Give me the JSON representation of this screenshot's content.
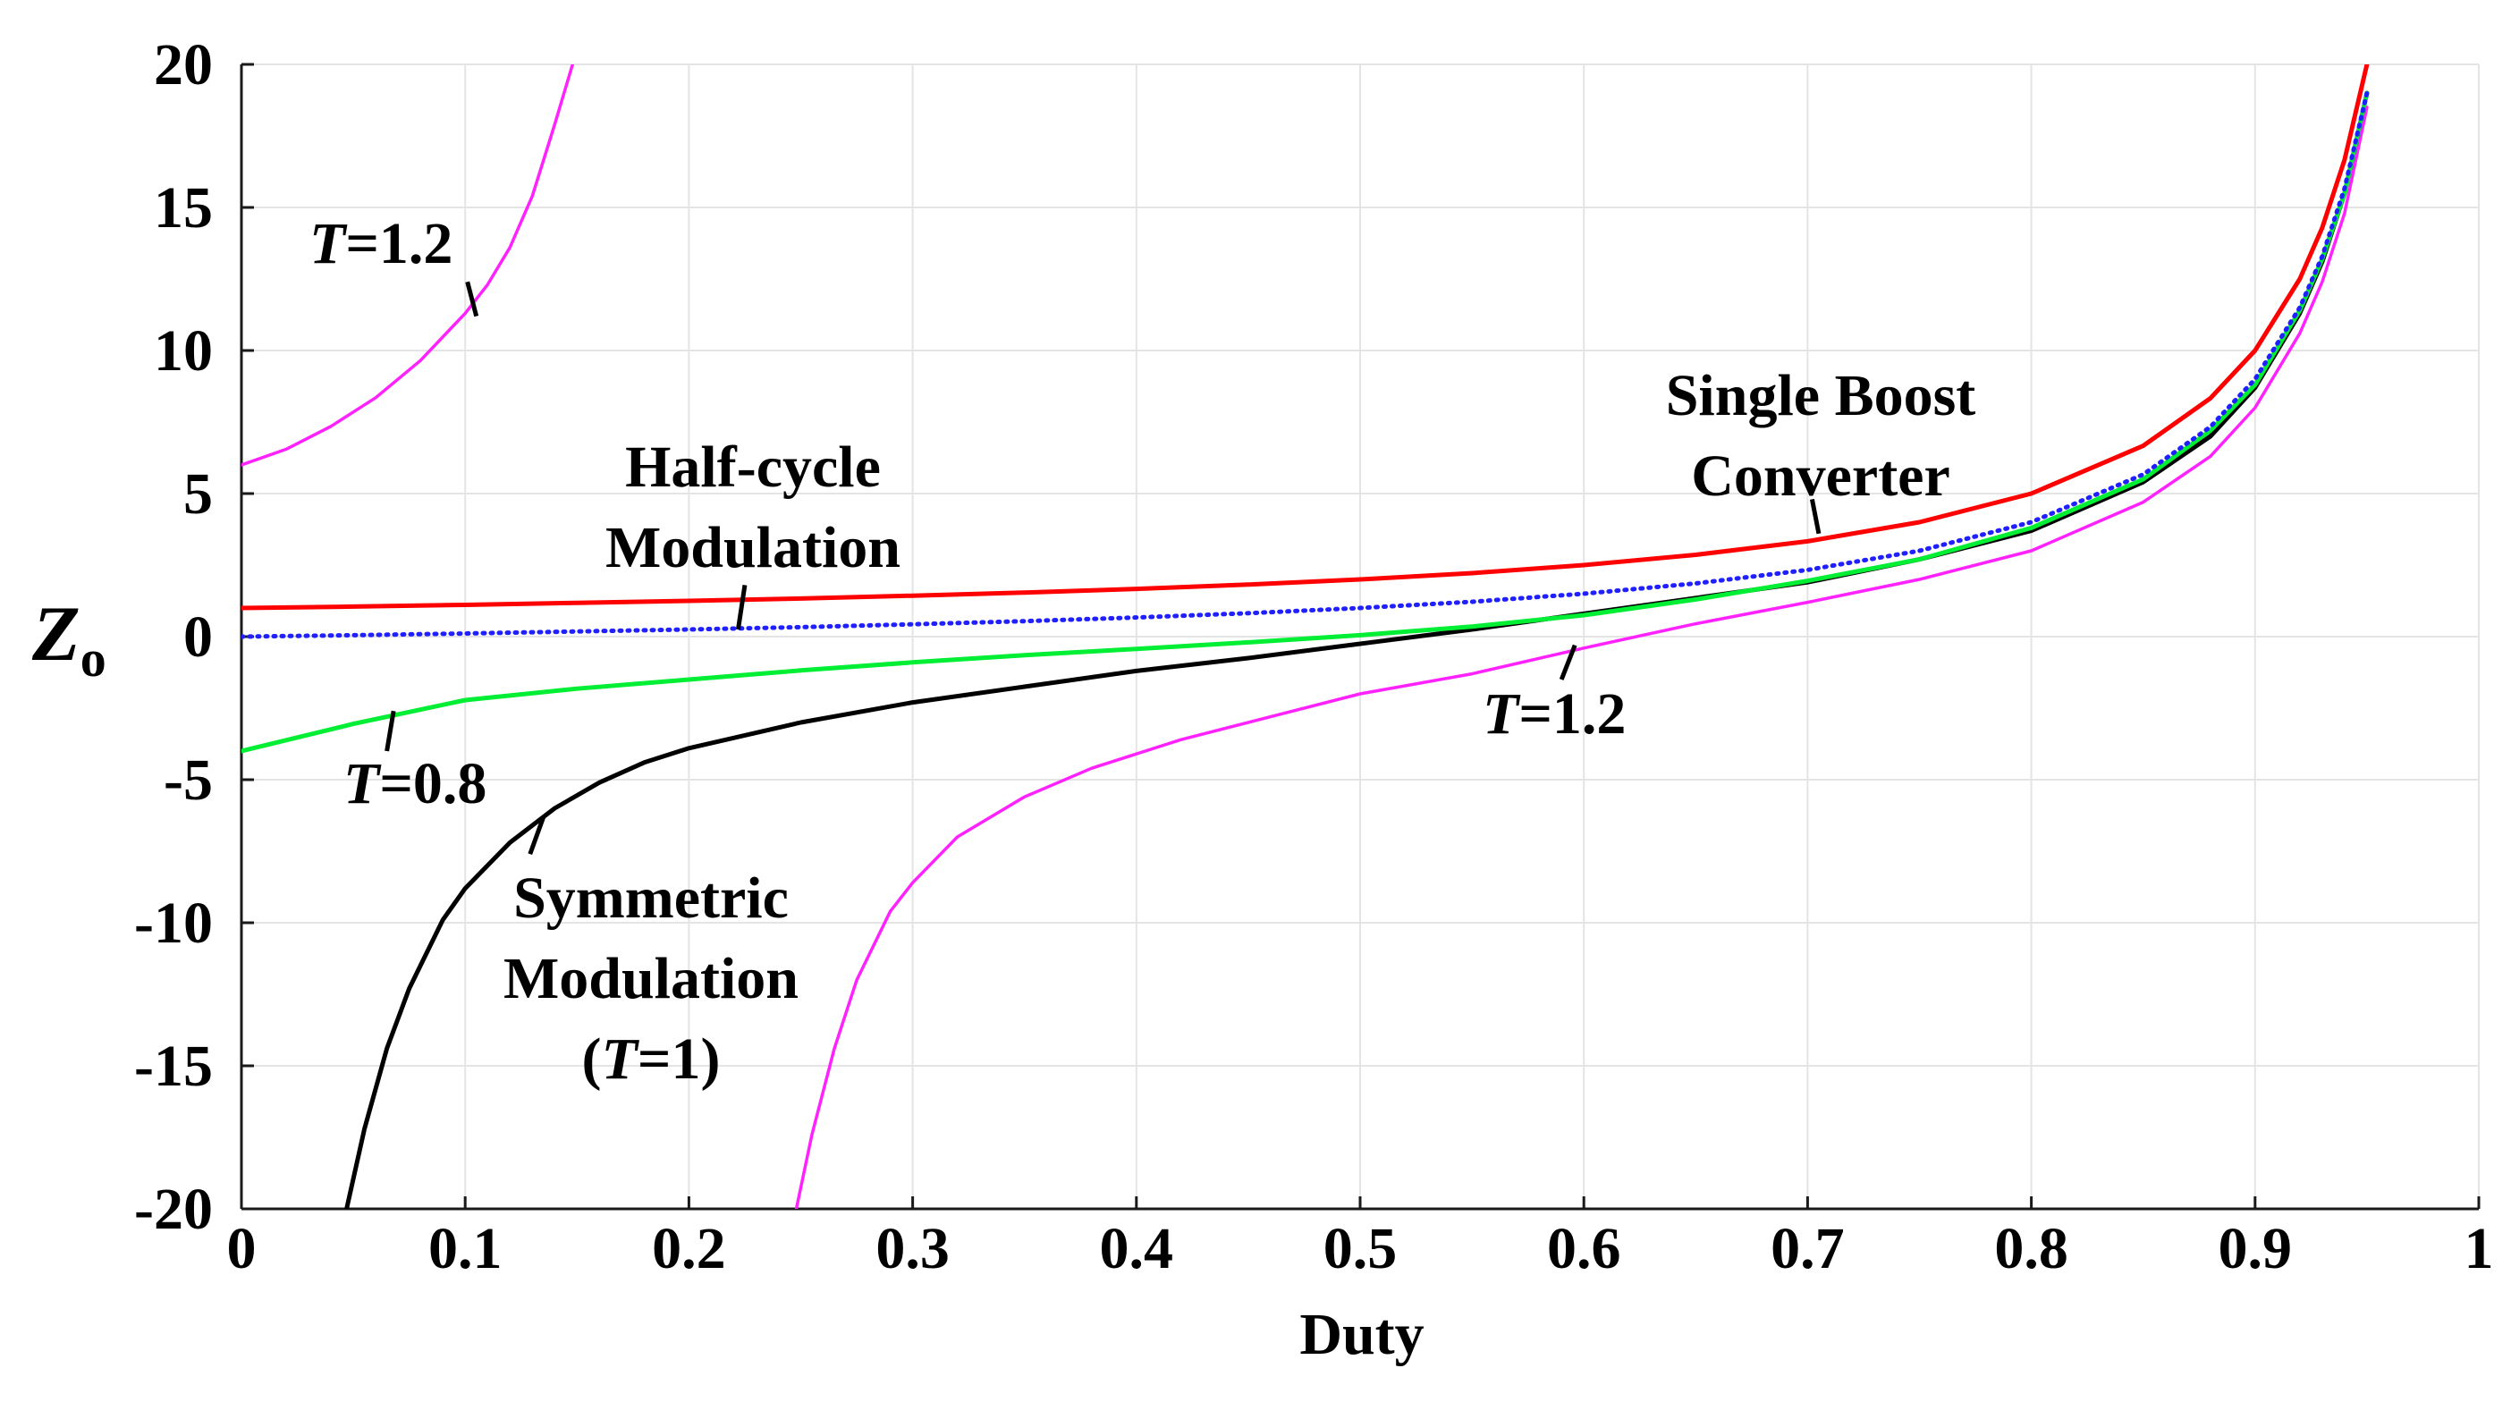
{
  "chart_data": {
    "type": "line",
    "title": "",
    "xlabel": "Duty",
    "ylabel": "Z",
    "ylabel_subscript": "o",
    "xlim": [
      0,
      1
    ],
    "ylim": [
      -20,
      20
    ],
    "x_ticks": [
      0,
      0.1,
      0.2,
      0.3,
      0.4,
      0.5,
      0.6,
      0.7,
      0.8,
      0.9,
      1
    ],
    "x_tick_labels": [
      "0",
      "0.1",
      "0.2",
      "0.3",
      "0.4",
      "0.5",
      "0.6",
      "0.7",
      "0.8",
      "0.9",
      "1"
    ],
    "y_ticks": [
      20,
      15,
      10,
      5,
      0,
      -5,
      -10,
      -15,
      -20
    ],
    "y_tick_labels": [
      "20",
      "15",
      "10",
      "5",
      "0",
      "-5",
      "-10",
      "-15",
      "-20"
    ],
    "grid": true,
    "series": [
      {
        "name": "Single Boost Converter",
        "color": "#ff0000",
        "style": "solid",
        "x": [
          0,
          0.05,
          0.1,
          0.15,
          0.2,
          0.25,
          0.3,
          0.35,
          0.4,
          0.45,
          0.5,
          0.55,
          0.6,
          0.65,
          0.7,
          0.75,
          0.8,
          0.85,
          0.88,
          0.9,
          0.92,
          0.93,
          0.94,
          0.95
        ],
        "y": [
          1,
          1.05,
          1.11,
          1.18,
          1.25,
          1.33,
          1.43,
          1.54,
          1.67,
          1.82,
          2,
          2.22,
          2.5,
          2.86,
          3.33,
          4,
          5,
          6.67,
          8.33,
          10,
          12.5,
          14.29,
          16.67,
          20
        ]
      },
      {
        "name": "Half-cycle Modulation",
        "color": "#1f1fff",
        "style": "dotted",
        "x": [
          0,
          0.05,
          0.1,
          0.15,
          0.2,
          0.25,
          0.3,
          0.35,
          0.4,
          0.45,
          0.5,
          0.55,
          0.6,
          0.65,
          0.7,
          0.75,
          0.8,
          0.85,
          0.88,
          0.9,
          0.92,
          0.93,
          0.94,
          0.95
        ],
        "y": [
          0,
          0.05,
          0.11,
          0.18,
          0.25,
          0.33,
          0.43,
          0.54,
          0.67,
          0.82,
          1,
          1.22,
          1.5,
          1.86,
          2.33,
          3,
          4,
          5.67,
          7.33,
          9,
          11.5,
          13.29,
          15.67,
          19
        ]
      },
      {
        "name": "T=0.8",
        "color": "#00ee33",
        "style": "solid",
        "x": [
          0,
          0.05,
          0.1,
          0.15,
          0.2,
          0.25,
          0.3,
          0.35,
          0.4,
          0.45,
          0.5,
          0.55,
          0.6,
          0.65,
          0.7,
          0.75,
          0.8,
          0.85,
          0.88,
          0.9,
          0.92,
          0.93,
          0.94,
          0.95
        ],
        "y": [
          -4,
          -3.05,
          -2.22,
          -1.82,
          -1.5,
          -1.18,
          -0.9,
          -0.65,
          -0.43,
          -0.2,
          0.05,
          0.35,
          0.75,
          1.3,
          1.95,
          2.7,
          3.8,
          5.5,
          7.2,
          8.8,
          11.4,
          13.2,
          15.5,
          19
        ]
      },
      {
        "name": "Symmetric Modulation (T=1)",
        "color": "#000000",
        "style": "solid",
        "x": [
          0.047,
          0.055,
          0.065,
          0.075,
          0.09,
          0.1,
          0.12,
          0.14,
          0.16,
          0.18,
          0.2,
          0.25,
          0.3,
          0.35,
          0.4,
          0.45,
          0.5,
          0.55,
          0.6,
          0.65,
          0.7,
          0.75,
          0.8,
          0.85,
          0.88,
          0.9,
          0.92,
          0.93,
          0.94,
          0.95
        ],
        "y": [
          -20,
          -17.2,
          -14.4,
          -12.3,
          -9.9,
          -8.8,
          -7.2,
          -6.0,
          -5.1,
          -4.4,
          -3.9,
          -3.0,
          -2.3,
          -1.75,
          -1.2,
          -0.75,
          -0.25,
          0.25,
          0.8,
          1.35,
          1.9,
          2.7,
          3.7,
          5.4,
          7,
          8.7,
          11.3,
          13.1,
          15.5,
          19
        ]
      },
      {
        "name": "T=1.2 (lower branch)",
        "color": "#ff22ff",
        "style": "solid",
        "x": [
          0.248,
          0.255,
          0.265,
          0.275,
          0.29,
          0.3,
          0.32,
          0.35,
          0.38,
          0.42,
          0.46,
          0.5,
          0.55,
          0.6,
          0.65,
          0.7,
          0.75,
          0.8,
          0.85,
          0.88,
          0.9,
          0.92,
          0.93,
          0.94,
          0.95
        ],
        "y": [
          -20,
          -17.4,
          -14.4,
          -12.0,
          -9.6,
          -8.6,
          -7.0,
          -5.6,
          -4.6,
          -3.6,
          -2.8,
          -2.0,
          -1.3,
          -0.4,
          0.45,
          1.2,
          2.0,
          3.0,
          4.7,
          6.3,
          8.0,
          10.6,
          12.4,
          14.8,
          18.5
        ]
      },
      {
        "name": "T=1.2 (upper branch)",
        "color": "#ff22ff",
        "style": "solid",
        "x": [
          0,
          0.02,
          0.04,
          0.06,
          0.08,
          0.1,
          0.11,
          0.12,
          0.13,
          0.14,
          0.148
        ],
        "y": [
          6,
          6.55,
          7.35,
          8.35,
          9.65,
          11.3,
          12.3,
          13.6,
          15.4,
          17.9,
          20
        ]
      }
    ],
    "annotations": [
      {
        "text": "T",
        "suffix": "=1.2",
        "italic_prefix": true,
        "label_for": "T=1.2 (upper branch)"
      },
      {
        "text": "Half-cycle",
        "label_for": "Half-cycle Modulation"
      },
      {
        "text": "Modulation",
        "label_for": "Half-cycle Modulation"
      },
      {
        "text": "Single Boost",
        "label_for": "Single Boost Converter"
      },
      {
        "text": "Converter",
        "label_for": "Single Boost Converter"
      },
      {
        "text": "T",
        "suffix": "=1.2",
        "italic_prefix": true,
        "label_for": "T=1.2 (lower branch)"
      },
      {
        "text": "T",
        "suffix": "=0.8",
        "italic_prefix": true,
        "label_for": "T=0.8"
      },
      {
        "text": "Symmetric",
        "label_for": "Symmetric Modulation (T=1)"
      },
      {
        "text": "Modulation",
        "label_for": "Symmetric Modulation (T=1)"
      },
      {
        "text": "(",
        "middle": "T",
        "suffix": "=1)",
        "label_for": "Symmetric Modulation (T=1)"
      }
    ]
  }
}
